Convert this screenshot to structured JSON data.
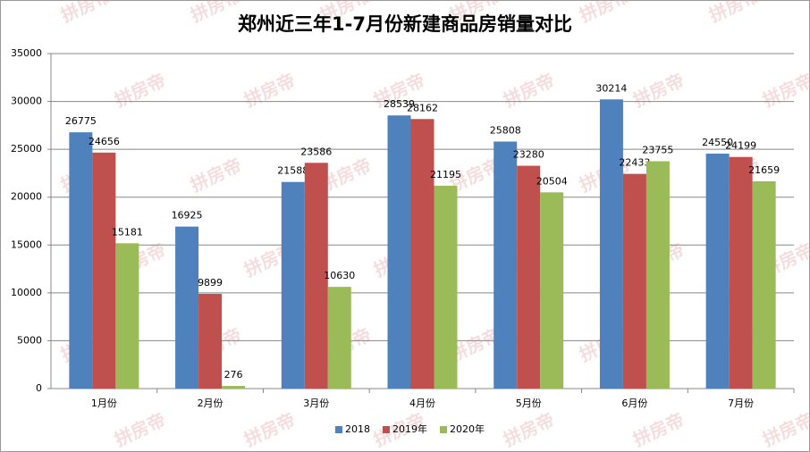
{
  "chart_data": {
    "type": "bar",
    "title": "郑州近三年1-7月份新建商品房销量对比",
    "watermark": "拼房帝",
    "categories": [
      "1月份",
      "2月份",
      "3月份",
      "4月份",
      "5月份",
      "6月份",
      "7月份"
    ],
    "series": [
      {
        "name": "2018",
        "color": "#4f81bd",
        "values": [
          26775,
          16925,
          21588,
          28539,
          25808,
          30214,
          24550
        ]
      },
      {
        "name": "2019年",
        "color": "#c0504d",
        "values": [
          24656,
          9899,
          23586,
          28162,
          23280,
          22433,
          24199
        ]
      },
      {
        "name": "2020年",
        "color": "#9bbb59",
        "values": [
          15181,
          276,
          10630,
          21195,
          20504,
          23755,
          21659
        ]
      }
    ],
    "ylim": [
      0,
      35000
    ],
    "yticks": [
      0,
      5000,
      10000,
      15000,
      20000,
      25000,
      30000,
      35000
    ],
    "grid": true,
    "legend": "bottom"
  }
}
